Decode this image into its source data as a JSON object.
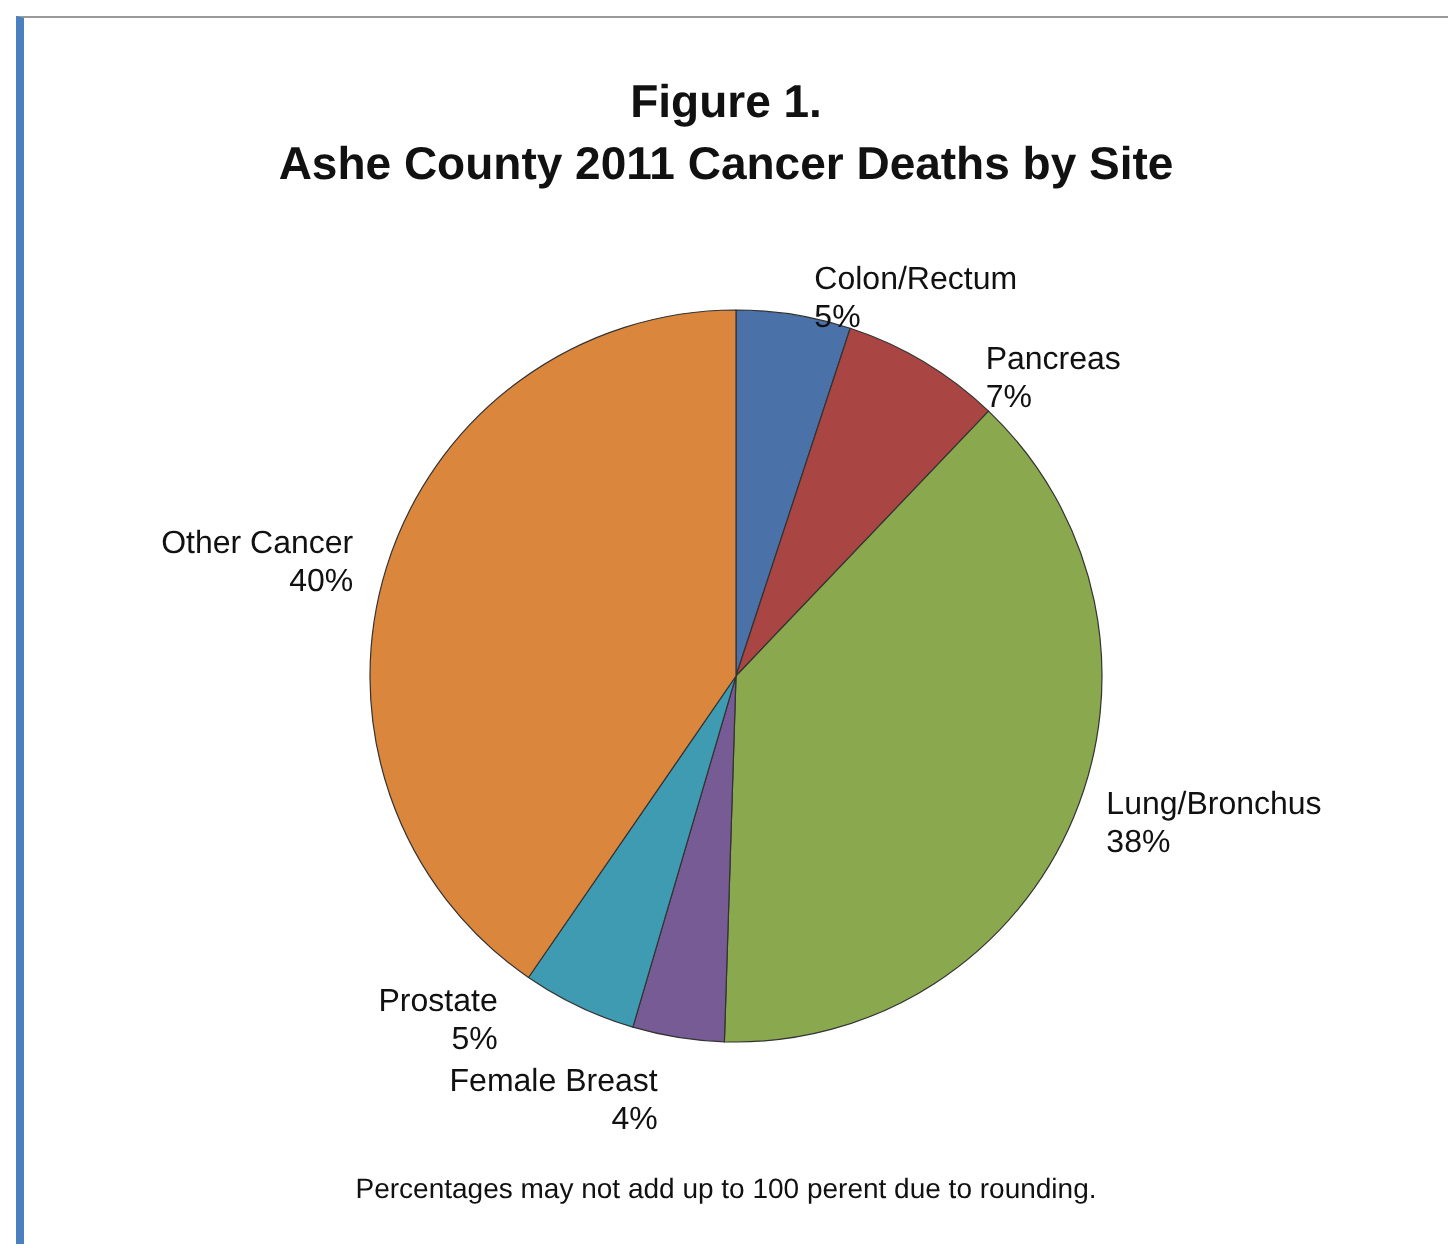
{
  "chart_data": {
    "type": "pie",
    "title": "Figure 1.\nAshe County 2011 Cancer Deaths by Site",
    "categories": [
      "Colon/Rectum",
      "Pancreas",
      "Lung/Bronchus",
      "Female Breast",
      "Prostate",
      "Other Cancer"
    ],
    "values": [
      5,
      7,
      38,
      4,
      5,
      40
    ],
    "value_labels": [
      "5%",
      "7%",
      "38%",
      "4%",
      "5%",
      "40%"
    ],
    "colors": [
      "#4a71a8",
      "#a94543",
      "#8aa94f",
      "#775b95",
      "#3e9bb2",
      "#da863d"
    ],
    "legend": false,
    "annotations": [
      "Percentages may not add up to 100 perent due to rounding."
    ]
  }
}
